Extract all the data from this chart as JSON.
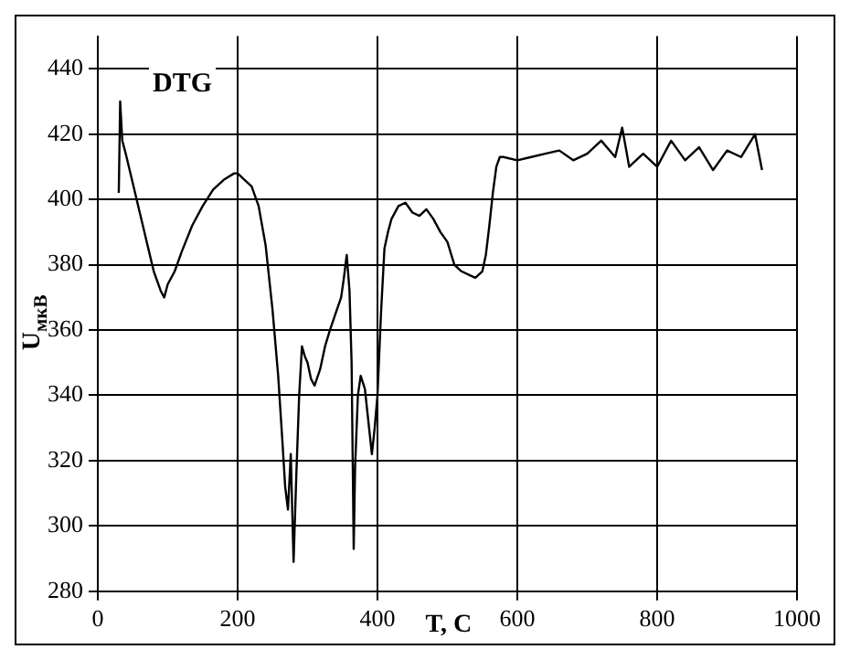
{
  "chart_data": {
    "type": "line",
    "annotations": [
      "DTG"
    ],
    "xlabel": "T, C",
    "ylabel": "U$_{мкВ}$",
    "x": [
      30,
      32,
      35,
      40,
      50,
      60,
      70,
      80,
      90,
      95,
      100,
      110,
      120,
      135,
      150,
      165,
      180,
      195,
      200,
      210,
      220,
      230,
      240,
      250,
      258,
      264,
      268,
      272,
      276,
      280,
      284,
      288,
      292,
      296,
      300,
      305,
      310,
      318,
      325,
      332,
      340,
      348,
      352,
      356,
      360,
      363,
      366,
      368,
      372,
      376,
      382,
      388,
      392,
      396,
      400,
      405,
      410,
      415,
      420,
      430,
      440,
      450,
      460,
      470,
      480,
      490,
      500,
      510,
      520,
      530,
      540,
      550,
      555,
      560,
      565,
      570,
      575,
      580,
      600,
      620,
      640,
      660,
      680,
      700,
      720,
      740,
      750,
      760,
      780,
      800,
      820,
      840,
      860,
      880,
      900,
      920,
      940,
      950
    ],
    "series": [
      {
        "color": "#000000",
        "values": [
          402,
          430,
          418,
          414,
          405,
          396,
          387,
          378,
          372,
          370,
          374,
          378,
          384,
          392,
          398,
          403,
          406,
          408,
          408,
          406,
          404,
          398,
          386,
          366,
          346,
          326,
          312,
          305,
          322,
          289,
          316,
          340,
          355,
          352,
          350,
          345,
          343,
          348,
          355,
          360,
          365,
          370,
          376,
          383,
          372,
          350,
          293,
          318,
          340,
          346,
          342,
          330,
          322,
          330,
          340,
          365,
          385,
          390,
          394,
          398,
          399,
          396,
          395,
          397,
          394,
          390,
          387,
          380,
          378,
          377,
          376,
          378,
          383,
          392,
          402,
          410,
          413,
          413,
          412,
          413,
          414,
          415,
          412,
          414,
          418,
          413,
          422,
          410,
          414,
          410,
          418,
          412,
          416,
          409,
          415,
          413,
          420,
          409
        ]
      }
    ],
    "xlim": [
      0,
      1000
    ],
    "xticks": [
      0,
      200,
      400,
      600,
      800,
      1000
    ],
    "ylim": [
      280,
      450
    ],
    "yticks": [
      280,
      300,
      320,
      340,
      360,
      380,
      400,
      420,
      440
    ],
    "grid": true,
    "marker": "none",
    "line_style": "solid"
  }
}
